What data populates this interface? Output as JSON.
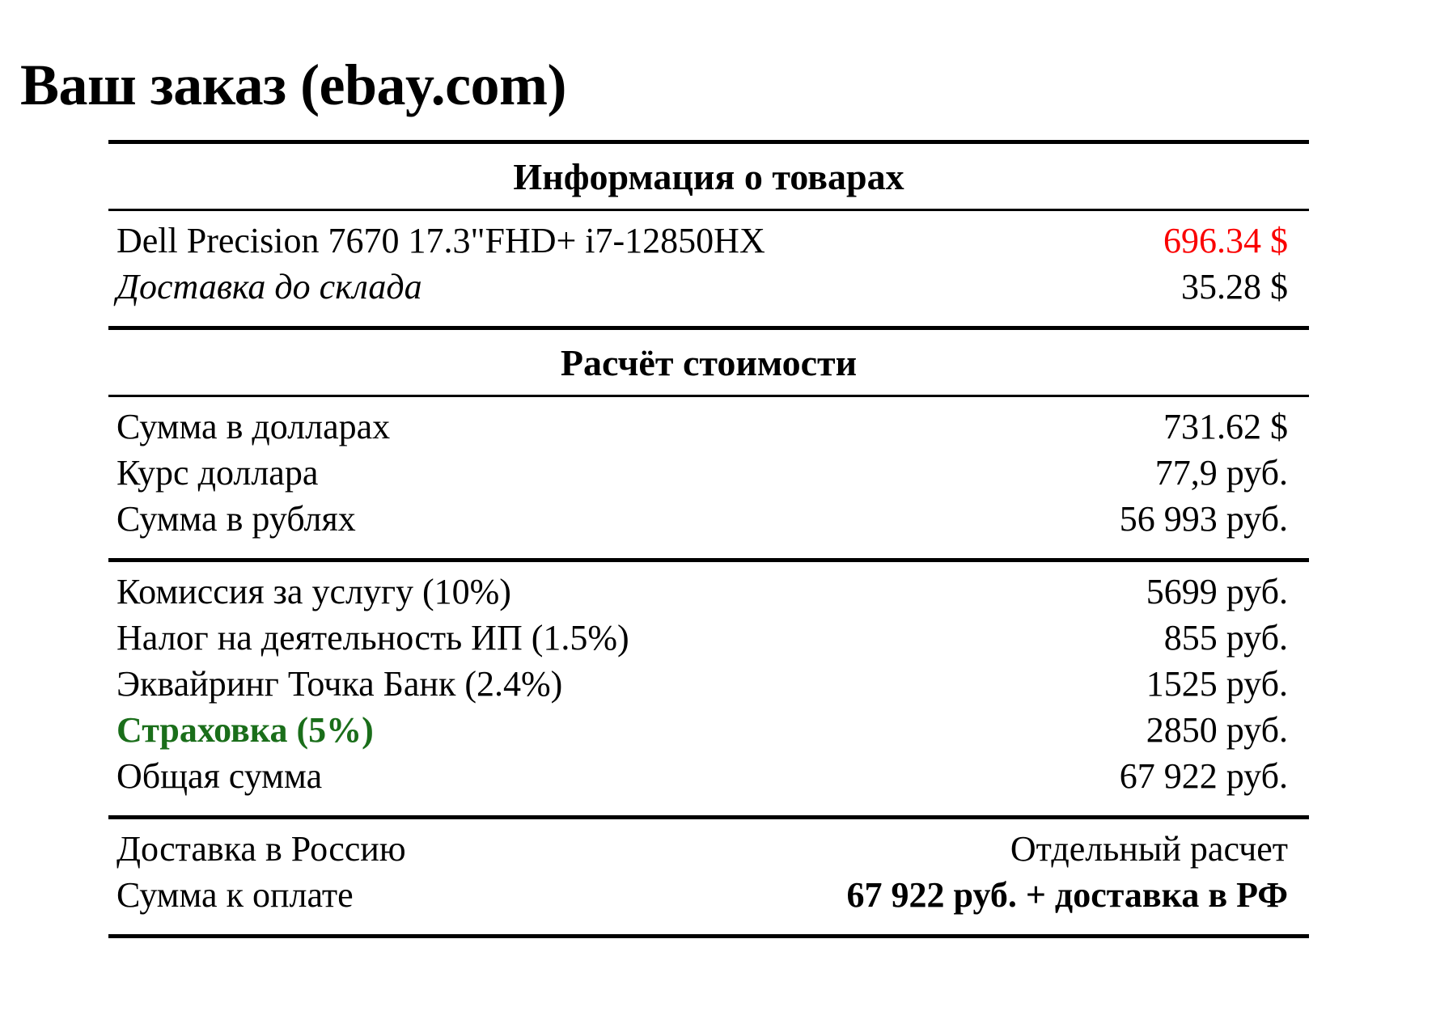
{
  "title": "Ваш заказ (ebay.com)",
  "colors": {
    "item_price_red": "#fa0000",
    "insurance_green": "#1a6e1a",
    "text": "#000000"
  },
  "table": {
    "sections": [
      {
        "header": "Информация о товарах",
        "groups": [
          {
            "rows": [
              {
                "label": "Dell Precision 7670 17.3\"FHD+ i7-12850HX",
                "value": "696.34 $"
              },
              {
                "label": "Доставка до склада",
                "value": "35.28 $"
              }
            ]
          }
        ]
      },
      {
        "header": "Расчёт стоимости",
        "groups": [
          {
            "rows": [
              {
                "label": "Сумма в долларах",
                "value": "731.62 $"
              },
              {
                "label": "Курс доллара",
                "value": "77,9 руб."
              },
              {
                "label": "Сумма в рублях",
                "value": "56 993 руб."
              }
            ]
          },
          {
            "rows": [
              {
                "label": "Комиссия за услугу (10%)",
                "value": "5699 руб."
              },
              {
                "label": "Налог на деятельность ИП (1.5%)",
                "value": "855 руб."
              },
              {
                "label": "Эквайринг Точка Банк (2.4%)",
                "value": "1525 руб."
              },
              {
                "label": "Страховка (5%)",
                "value": "2850 руб."
              },
              {
                "label": "Общая сумма",
                "value": "67 922 руб."
              }
            ]
          },
          {
            "rows": [
              {
                "label": "Доставка в Россию",
                "value": "Отдельный расчет"
              },
              {
                "label": "Сумма к оплате",
                "value": "67 922 руб. + доставка в РФ"
              }
            ]
          }
        ]
      }
    ]
  }
}
